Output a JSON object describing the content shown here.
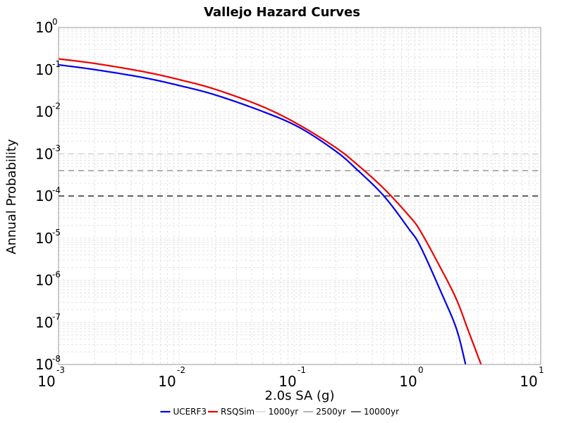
{
  "chart_data": {
    "type": "line",
    "title": "Vallejo Hazard Curves",
    "xlabel": "2.0s SA (g)",
    "ylabel": "Annual Probability",
    "x_scale": "log",
    "y_scale": "log",
    "xlim": [
      0.001,
      10
    ],
    "ylim": [
      1e-08,
      1
    ],
    "grid": true,
    "legend_position": "bottom",
    "x_ticks": [
      {
        "base": "10",
        "exp": "-3"
      },
      {
        "base": "10",
        "exp": "-2"
      },
      {
        "base": "10",
        "exp": "-1"
      },
      {
        "base": "10",
        "exp": "0"
      },
      {
        "base": "10",
        "exp": "1"
      }
    ],
    "y_ticks": [
      {
        "base": "10",
        "exp": "0"
      },
      {
        "base": "10",
        "exp": "-1"
      },
      {
        "base": "10",
        "exp": "-2"
      },
      {
        "base": "10",
        "exp": "-3"
      },
      {
        "base": "10",
        "exp": "-4"
      },
      {
        "base": "10",
        "exp": "-5"
      },
      {
        "base": "10",
        "exp": "-6"
      },
      {
        "base": "10",
        "exp": "-7"
      },
      {
        "base": "10",
        "exp": "-8"
      }
    ],
    "series": [
      {
        "name": "UCERF3",
        "color": "#0000ee",
        "x": [
          0.001,
          0.002,
          0.005,
          0.01,
          0.02,
          0.05,
          0.1,
          0.2,
          0.3,
          0.5,
          0.8,
          1.0,
          1.5,
          2.0,
          2.38
        ],
        "y": [
          0.13,
          0.1,
          0.065,
          0.042,
          0.025,
          0.01,
          0.0042,
          0.00115,
          0.00042,
          0.0001,
          1.7e-05,
          6.5e-06,
          5e-07,
          7e-08,
          1e-08
        ]
      },
      {
        "name": "RSQSim",
        "color": "#ee0000",
        "x": [
          0.001,
          0.002,
          0.005,
          0.01,
          0.02,
          0.05,
          0.1,
          0.2,
          0.3,
          0.5,
          0.8,
          1.0,
          1.5,
          2.0,
          2.5,
          3.2
        ],
        "y": [
          0.18,
          0.14,
          0.09,
          0.058,
          0.034,
          0.013,
          0.0048,
          0.0014,
          0.00056,
          0.00015,
          3.5e-05,
          1.5e-05,
          1.8e-06,
          3.5e-07,
          6.5e-08,
          1e-08
        ]
      }
    ],
    "reference_lines": [
      {
        "name": "1000yr",
        "y": 0.001,
        "color": "#cccccc",
        "style": "dashed"
      },
      {
        "name": "2500yr",
        "y": 0.0004,
        "color": "#808080",
        "style": "dashed"
      },
      {
        "name": "10000yr",
        "y": 0.0001,
        "color": "#000000",
        "style": "dashed"
      }
    ]
  }
}
